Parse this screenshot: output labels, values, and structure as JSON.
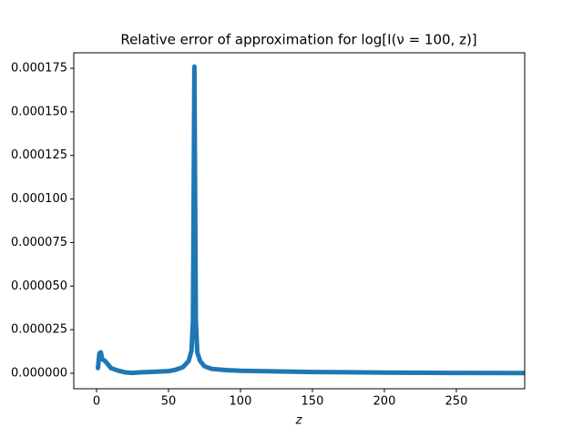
{
  "chart_data": {
    "type": "line",
    "title": "Relative error of approximation for log[I(ν = 100, z)]",
    "x_label": "z",
    "x": [
      1,
      2,
      3,
      4,
      6,
      10,
      15,
      20,
      25,
      30,
      40,
      50,
      55,
      60,
      64,
      66,
      67,
      68,
      69,
      70,
      72,
      75,
      80,
      90,
      100,
      150,
      200,
      250,
      297
    ],
    "series": [
      {
        "color": "#1f77b4",
        "values": [
          3e-06,
          1.15e-05,
          1.2e-05,
          8e-06,
          7e-06,
          3e-06,
          1.5e-06,
          5e-07,
          2e-07,
          5e-07,
          8e-07,
          1.2e-06,
          2e-06,
          3.5e-06,
          7e-06,
          1.3e-05,
          3e-05,
          0.000176,
          3e-05,
          1.2e-05,
          7e-06,
          4e-06,
          2.5e-06,
          1.8e-06,
          1.4e-06,
          7e-07,
          4e-07,
          2e-07,
          1e-07
        ]
      }
    ],
    "xlim": [
      -15.8,
      297.5
    ],
    "xticks": [
      0,
      50,
      100,
      150,
      200,
      250
    ],
    "ylim": [
      -8.9e-06,
      0.0001839
    ],
    "yticks": [
      {
        "value": 0,
        "label": "0.000000"
      },
      {
        "value": 2.5e-05,
        "label": "0.000025"
      },
      {
        "value": 5e-05,
        "label": "0.000050"
      },
      {
        "value": 7.5e-05,
        "label": "0.000075"
      },
      {
        "value": 0.0001,
        "label": "0.000100"
      },
      {
        "value": 0.000125,
        "label": "0.000125"
      },
      {
        "value": 0.00015,
        "label": "0.000150"
      },
      {
        "value": 0.000175,
        "label": "0.000175"
      }
    ]
  }
}
